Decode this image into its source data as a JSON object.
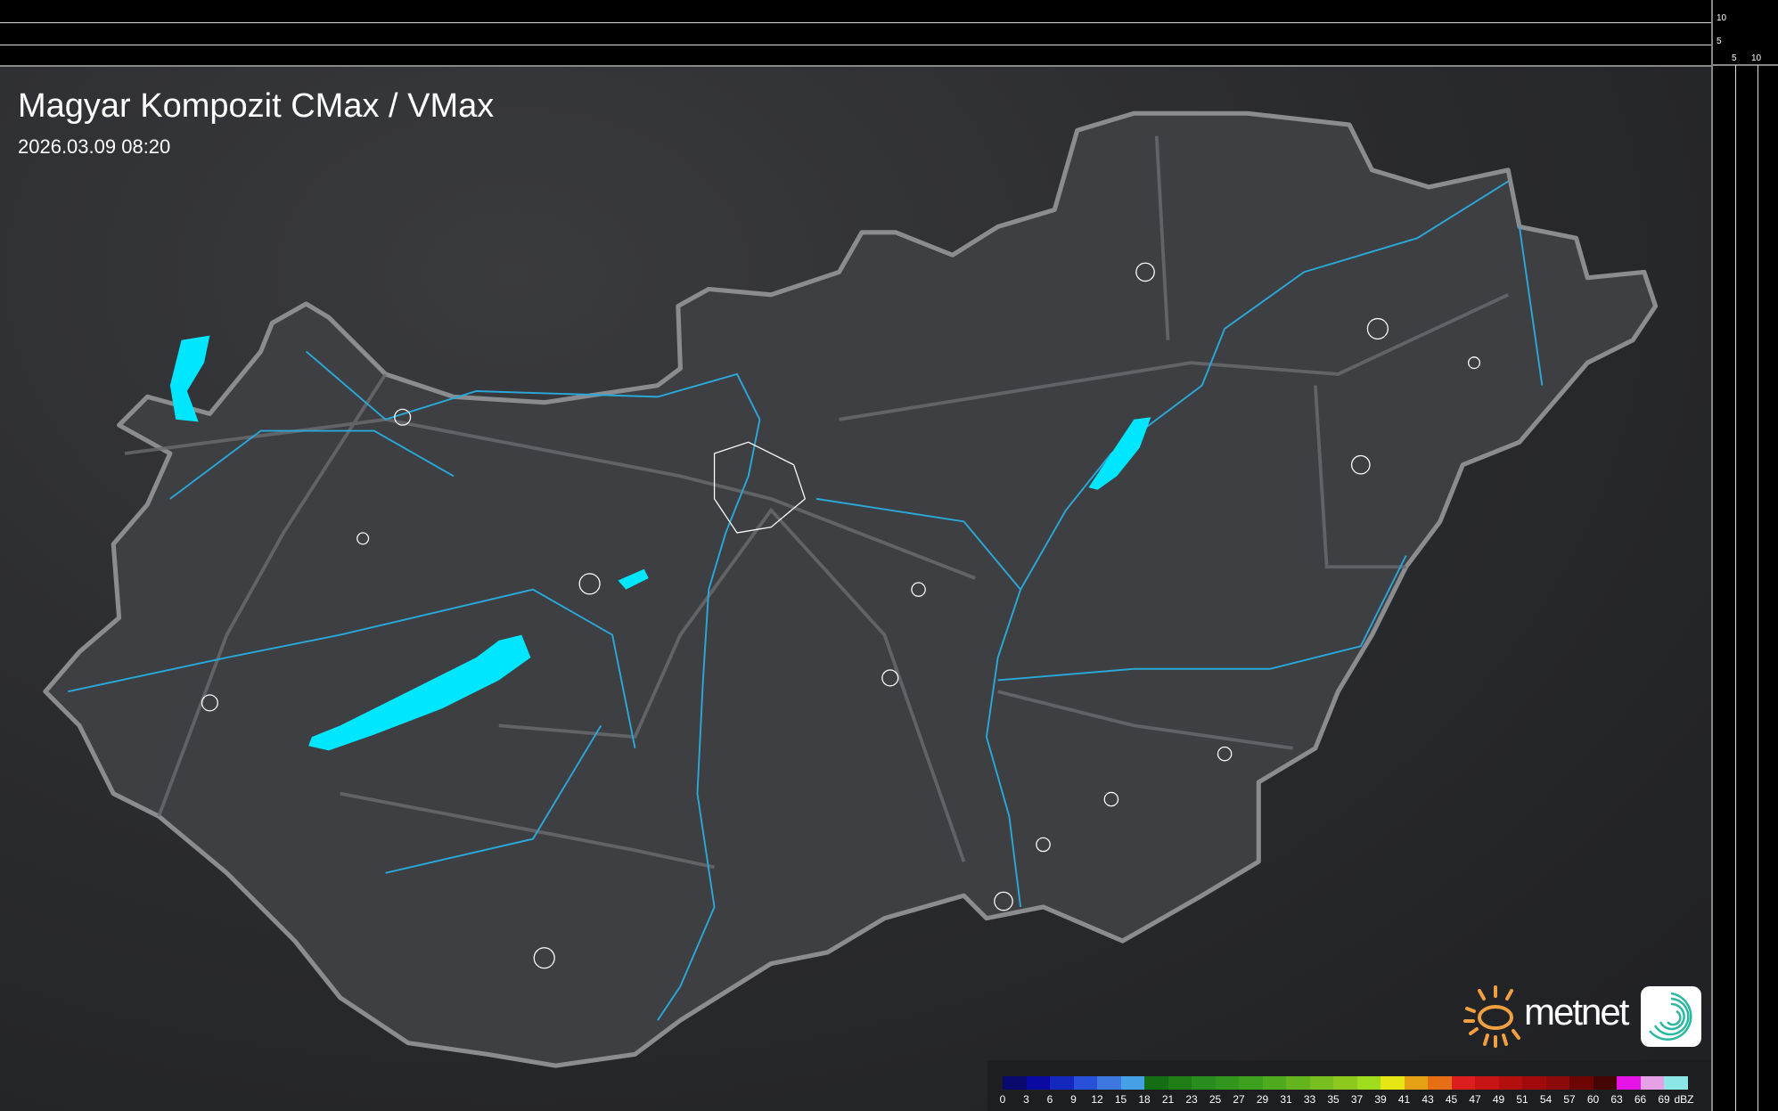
{
  "header": {
    "title": "Magyar Kompozit CMax / VMax",
    "timestamp": "2026.03.09 08:20"
  },
  "scale": {
    "vertical_ticks": [
      "10",
      "5"
    ],
    "horizontal_ticks": [
      "5",
      "10"
    ]
  },
  "legend": {
    "unit": "dBZ",
    "labels": [
      "0",
      "3",
      "6",
      "9",
      "12",
      "15",
      "18",
      "21",
      "23",
      "25",
      "27",
      "29",
      "31",
      "33",
      "35",
      "37",
      "39",
      "41",
      "43",
      "45",
      "47",
      "49",
      "51",
      "54",
      "57",
      "60",
      "63",
      "66",
      "69"
    ],
    "colors": [
      "#0a0a6e",
      "#0a0aa0",
      "#1428c0",
      "#2850d8",
      "#3c78e0",
      "#46a0e6",
      "#146e14",
      "#1e7d14",
      "#288c1e",
      "#32961e",
      "#3ca01e",
      "#50aa1e",
      "#64b41e",
      "#78be1e",
      "#8cc81e",
      "#a0dc1e",
      "#e6e614",
      "#e6a014",
      "#e66e14",
      "#dc1e1e",
      "#c81414",
      "#b40f0f",
      "#a00a0a",
      "#8c0a0a",
      "#6e0505",
      "#460505",
      "#e614e6",
      "#e6a0e6",
      "#8ce6e6"
    ]
  },
  "logo": {
    "text": "metnet"
  },
  "map": {
    "country_fill": "#3f4044",
    "border_color": "#7a7c80",
    "river_color": "#2aa8d8",
    "lake_color": "#00e6ff"
  }
}
